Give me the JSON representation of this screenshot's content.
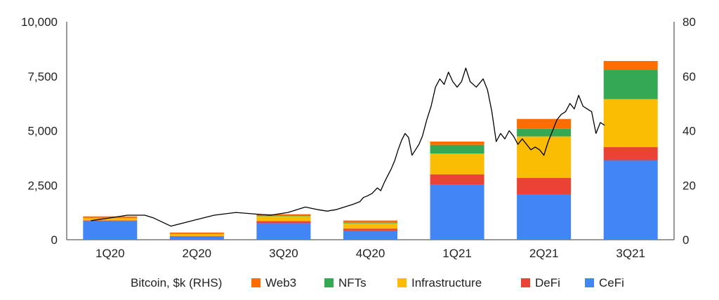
{
  "chart_data": {
    "type": "bar",
    "stacked": true,
    "categories": [
      "1Q20",
      "2Q20",
      "3Q20",
      "4Q20",
      "1Q21",
      "2Q21",
      "3Q21"
    ],
    "series": [
      {
        "name": "CeFi",
        "color": "#4285f4",
        "values": [
          870,
          140,
          760,
          420,
          2520,
          2090,
          3650
        ]
      },
      {
        "name": "DeFi",
        "color": "#ea4335",
        "values": [
          20,
          30,
          100,
          90,
          480,
          750,
          600
        ]
      },
      {
        "name": "Infrastructure",
        "color": "#fbbc04",
        "values": [
          100,
          90,
          220,
          240,
          950,
          1900,
          2200
        ]
      },
      {
        "name": "NFTs",
        "color": "#34a853",
        "values": [
          10,
          10,
          30,
          30,
          400,
          350,
          1350
        ]
      },
      {
        "name": "Web3",
        "color": "#ff6d01",
        "values": [
          70,
          60,
          60,
          100,
          150,
          450,
          400
        ]
      }
    ],
    "line_series": {
      "name": "Bitcoin, $k (RHS)",
      "color": "#000000",
      "axis": "right",
      "x": [
        0.28,
        0.5,
        0.7,
        0.9,
        1.0,
        1.2,
        1.45,
        1.7,
        1.95,
        2.15,
        2.35,
        2.55,
        2.75,
        2.9,
        3.0,
        3.1,
        3.2,
        3.3,
        3.38,
        3.42,
        3.46,
        3.52,
        3.58,
        3.62,
        3.66,
        3.7,
        3.74,
        3.78,
        3.82,
        3.86,
        3.9,
        3.94,
        3.98,
        4.02,
        4.06,
        4.1,
        4.15,
        4.2,
        4.25,
        4.3,
        4.35,
        4.4,
        4.45,
        4.5,
        4.55,
        4.6,
        4.65,
        4.72,
        4.8,
        4.85,
        4.9,
        4.95,
        5.0,
        5.05,
        5.1,
        5.15,
        5.2,
        5.25,
        5.3,
        5.35,
        5.4,
        5.45,
        5.5,
        5.55,
        5.6,
        5.65,
        5.7,
        5.75,
        5.8,
        5.85,
        5.9,
        5.95,
        6.0,
        6.05,
        6.1,
        6.15,
        6.2
      ],
      "y": [
        7,
        8,
        9,
        9,
        8,
        5,
        7,
        9,
        10,
        9.5,
        9,
        10,
        12,
        11,
        10.5,
        11,
        12,
        13,
        14,
        15.5,
        16,
        17,
        19,
        18,
        21,
        23.5,
        26,
        29,
        33,
        36.5,
        39,
        37.5,
        31,
        33,
        35,
        38,
        44,
        49,
        56,
        59,
        57,
        61.5,
        58,
        56,
        58,
        63,
        58,
        56,
        59,
        55,
        47,
        36,
        39,
        37,
        40,
        38,
        35,
        37,
        35,
        33,
        34,
        33,
        31,
        36,
        40,
        44,
        46,
        47,
        50,
        48,
        53,
        49,
        48,
        47,
        39,
        43,
        42
      ]
    },
    "y_left": {
      "min": 0,
      "max": 10000,
      "ticks": [
        "0",
        "2,500",
        "5,000",
        "7,500",
        "10,000"
      ],
      "tick_values": [
        0,
        2500,
        5000,
        7500,
        10000
      ]
    },
    "y_right": {
      "min": 0,
      "max": 80,
      "ticks": [
        "0",
        "20",
        "40",
        "60",
        "80"
      ],
      "tick_values": [
        0,
        20,
        40,
        60,
        80
      ]
    },
    "legend": {
      "placement": "bottom",
      "order": [
        "Bitcoin, $k (RHS)",
        "Web3",
        "NFTs",
        "Infrastructure",
        "DeFi",
        "CeFi"
      ]
    },
    "grid": false
  }
}
